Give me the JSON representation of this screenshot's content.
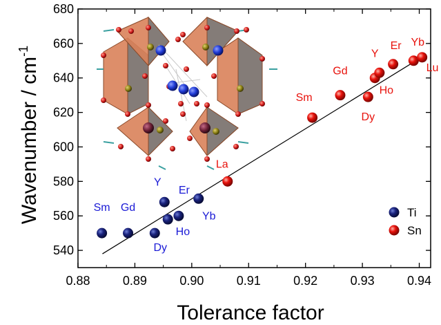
{
  "chart_data": {
    "type": "scatter",
    "xlabel": "Tolerance factor",
    "ylabel": "Wavenumber / cm",
    "ylabel_sup": "-1",
    "xlim": [
      0.88,
      0.942
    ],
    "ylim": [
      530,
      680
    ],
    "xticks": [
      0.88,
      0.89,
      0.9,
      0.91,
      0.92,
      0.93,
      0.94
    ],
    "xtick_labels": [
      "0.88",
      "0.89",
      "0.90",
      "0.91",
      "0.92",
      "0.93",
      "0.94"
    ],
    "yticks": [
      540,
      560,
      580,
      600,
      620,
      640,
      660,
      680
    ],
    "ytick_labels": [
      "540",
      "560",
      "580",
      "600",
      "620",
      "640",
      "660",
      "680"
    ],
    "grid": false,
    "legend_position": "bottom-right",
    "series": [
      {
        "name": "Ti",
        "color": "#1a237e",
        "label_color": "#1a1ad6",
        "points": [
          {
            "label": "Sm",
            "x": 0.8842,
            "y": 550
          },
          {
            "label": "Gd",
            "x": 0.8888,
            "y": 550
          },
          {
            "label": "Dy",
            "x": 0.8935,
            "y": 550
          },
          {
            "label": "Y",
            "x": 0.8952,
            "y": 568
          },
          {
            "label": "",
            "x": 0.8958,
            "y": 558
          },
          {
            "label": "Ho",
            "x": 0.8977,
            "y": 560
          },
          {
            "label": "Er",
            "x": 0.8977,
            "y": 560
          },
          {
            "label": "Yb",
            "x": 0.9012,
            "y": 570
          }
        ]
      },
      {
        "name": "Sn",
        "color": "#e8120c",
        "label_color": "#e8120c",
        "points": [
          {
            "label": "La",
            "x": 0.9063,
            "y": 580
          },
          {
            "label": "Sm",
            "x": 0.9212,
            "y": 617
          },
          {
            "label": "Gd",
            "x": 0.9261,
            "y": 630
          },
          {
            "label": "Dy",
            "x": 0.931,
            "y": 629
          },
          {
            "label": "Y",
            "x": 0.9322,
            "y": 640
          },
          {
            "label": "",
            "x": 0.933,
            "y": 643
          },
          {
            "label": "Ho",
            "x": 0.933,
            "y": 643
          },
          {
            "label": "Er",
            "x": 0.9354,
            "y": 648
          },
          {
            "label": "Yb",
            "x": 0.939,
            "y": 650
          },
          {
            "label": "Lu",
            "x": 0.9405,
            "y": 652
          }
        ]
      }
    ],
    "fit_line": {
      "x": [
        0.8843,
        0.9404
      ],
      "y": [
        538,
        652
      ],
      "color": "#000000"
    },
    "inset": {
      "description": "pyrochlore crystal structure illustration",
      "colors": {
        "octahedron": "#d9825a",
        "shadow": "#7a7a7a",
        "oxygen": "#d21b1b",
        "cation": "#1f3bd6",
        "olive": "#8a7f14",
        "dark": "#6b1f35",
        "bond": "#3aa0a0"
      }
    }
  }
}
